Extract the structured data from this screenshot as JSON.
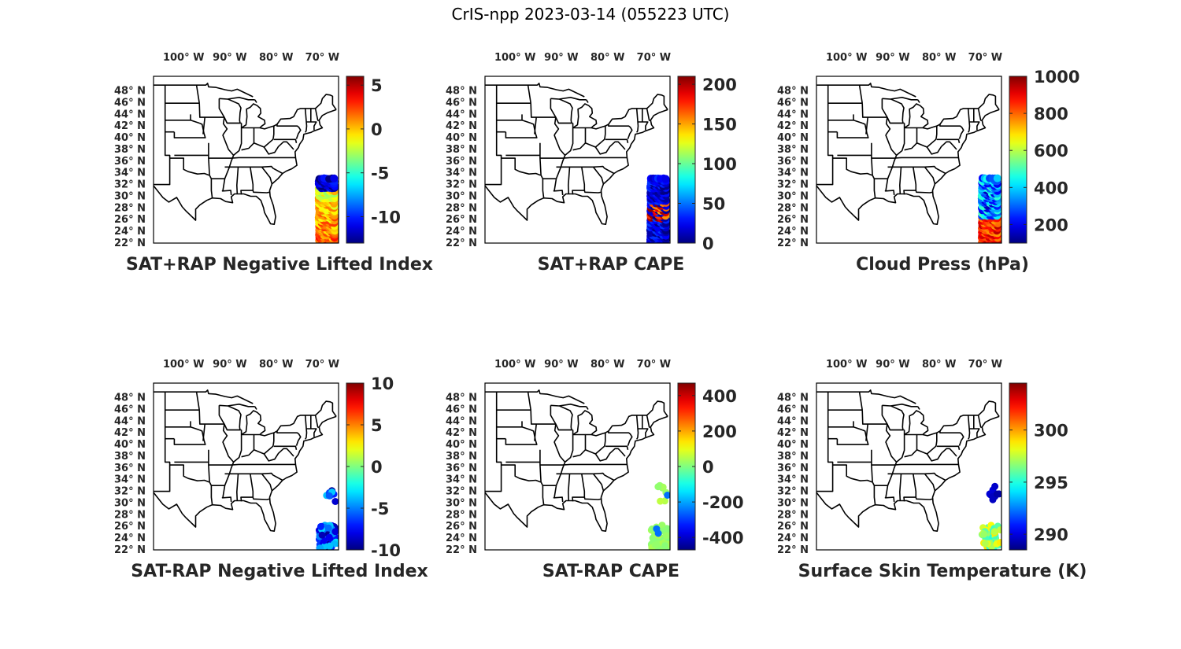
{
  "title": "CrIS-npp 2023-03-14 (055223 UTC)",
  "lon_ticks": [
    "100° W",
    "90° W",
    "80° W",
    "70° W"
  ],
  "lat_ticks": [
    "48° N",
    "46° N",
    "44° N",
    "42° N",
    "40° N",
    "38° N",
    "36° N",
    "34° N",
    "32° N",
    "30° N",
    "28° N",
    "26° N",
    "24° N",
    "22° N"
  ],
  "colormap": "jet",
  "panels": [
    {
      "id": "sat-rap-neg-lifted-index",
      "title": "SAT+RAP Negative Lifted Index",
      "colorbar": {
        "min": -13,
        "max": 6,
        "ticks": [
          "5",
          "0",
          "-5",
          "-10"
        ],
        "tick_values": [
          5,
          0,
          -5,
          -10
        ]
      },
      "data_coverage": "swath 22N-33N, 71W-67W",
      "observed_value_range": [
        -10,
        3
      ]
    },
    {
      "id": "sat-rap-cape",
      "title": "SAT+RAP CAPE",
      "colorbar": {
        "min": 0,
        "max": 210,
        "ticks": [
          "200",
          "150",
          "100",
          "50",
          "0"
        ],
        "tick_values": [
          200,
          150,
          100,
          50,
          0
        ]
      },
      "data_coverage": "swath 22N-33N, 71W-67W",
      "observed_value_range": [
        0,
        210
      ]
    },
    {
      "id": "cloud-press",
      "title": "Cloud Press (hPa)",
      "colorbar": {
        "min": 100,
        "max": 1000,
        "ticks": [
          "1000",
          "800",
          "600",
          "400",
          "200"
        ],
        "tick_values": [
          1000,
          800,
          600,
          400,
          200
        ]
      },
      "data_coverage": "swath 22N-33N, 71W-67W",
      "observed_value_range": [
        150,
        950
      ]
    },
    {
      "id": "sat-minus-rap-neg-lifted-index",
      "title": "SAT-RAP Negative Lifted Index",
      "colorbar": {
        "min": -10,
        "max": 10,
        "ticks": [
          "10",
          "5",
          "0",
          "-5",
          "-10"
        ],
        "tick_values": [
          10,
          5,
          0,
          -5,
          -10
        ]
      },
      "data_coverage": "clusters near 31N and 23-26N, 70W-67W",
      "observed_value_range": [
        -10,
        -3
      ]
    },
    {
      "id": "sat-minus-rap-cape",
      "title": "SAT-RAP CAPE",
      "colorbar": {
        "min": -470,
        "max": 470,
        "ticks": [
          "400",
          "200",
          "0",
          "-200",
          "-400"
        ],
        "tick_values": [
          400,
          200,
          0,
          -200,
          -400
        ]
      },
      "data_coverage": "clusters near 31N and 23-26N, 70W-67W",
      "observed_value_range": [
        -300,
        60
      ]
    },
    {
      "id": "surface-skin-temperature",
      "title": "Surface Skin Temperature (K)",
      "colorbar": {
        "min": 288.5,
        "max": 304.5,
        "ticks": [
          "300",
          "295",
          "290"
        ],
        "tick_values": [
          300,
          295,
          290
        ]
      },
      "data_coverage": "clusters near 31N and 23-26N, 70W-67W",
      "observed_value_range": [
        289,
        299
      ]
    }
  ]
}
